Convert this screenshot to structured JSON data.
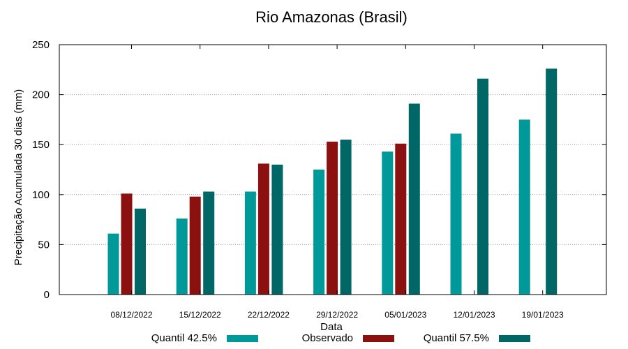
{
  "chart_data": {
    "type": "bar",
    "title": "Rio Amazonas (Brasil)",
    "xlabel": "Data",
    "ylabel": "Precipitação Acumulada 30 dias (mm)",
    "ylim": [
      0,
      250
    ],
    "yticks": [
      0,
      50,
      100,
      150,
      200,
      250
    ],
    "grid": true,
    "legend_position": "bottom",
    "categories": [
      "08/12/2022",
      "15/12/2022",
      "22/12/2022",
      "29/12/2022",
      "05/01/2023",
      "12/01/2023",
      "19/01/2023"
    ],
    "series": [
      {
        "name": "Quantil 42.5%",
        "color": "#009999",
        "values": [
          61,
          76,
          103,
          125,
          143,
          161,
          175
        ]
      },
      {
        "name": "Observado",
        "color": "#8b1010",
        "values": [
          101,
          98,
          131,
          153,
          151,
          null,
          null
        ]
      },
      {
        "name": "Quantil 57.5%",
        "color": "#006666",
        "values": [
          86,
          103,
          130,
          155,
          191,
          216,
          226
        ]
      }
    ]
  }
}
